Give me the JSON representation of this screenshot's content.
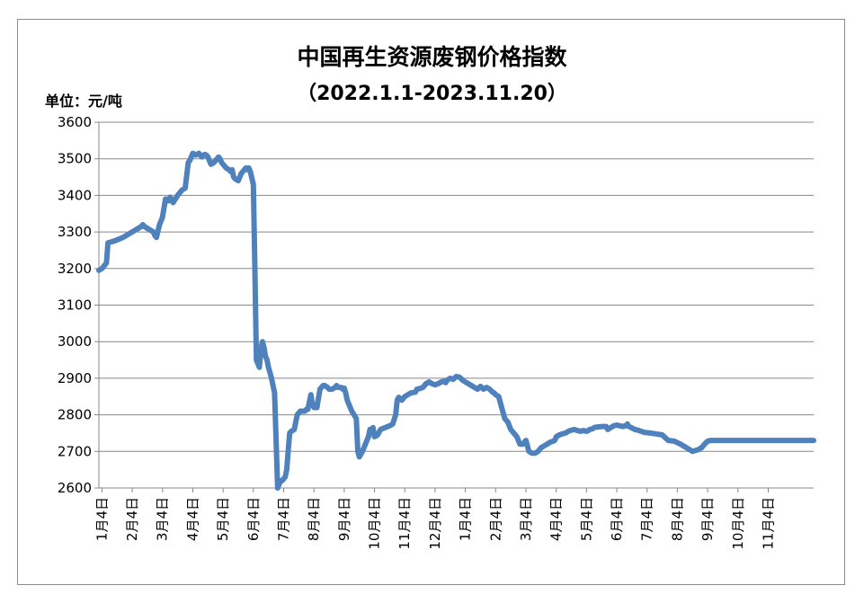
{
  "chart_data": {
    "type": "line",
    "title": "中国再生资源废钢价格指数",
    "subtitle": "（2022.1.1-2023.11.20）",
    "unit_label": "单位：元/吨",
    "ylim": [
      2600,
      3600
    ],
    "yticks": [
      2600,
      2700,
      2800,
      2900,
      3000,
      3100,
      3200,
      3300,
      3400,
      3500,
      3600
    ],
    "xlim": [
      0,
      23.6
    ],
    "categories": [
      "1月4日",
      "2月4日",
      "3月4日",
      "4月4日",
      "5月4日",
      "6月4日",
      "7月4日",
      "8月4日",
      "9月4日",
      "10月4日",
      "11月4日",
      "12月4日",
      "1月4日",
      "2月4日",
      "3月4日",
      "4月4日",
      "5月4日",
      "6月4日",
      "7月4日",
      "8月4日",
      "9月4日",
      "10月4日",
      "11月4日"
    ],
    "grid": true,
    "line_color": "#4f81bd",
    "series": [
      {
        "x": [
          0.0,
          0.1,
          0.2,
          0.25,
          0.3,
          0.5,
          0.8,
          1.1,
          1.4,
          1.45,
          1.5,
          1.8,
          1.85,
          1.9,
          2.0,
          2.05,
          2.1,
          2.2,
          2.3,
          2.35,
          2.45,
          2.6,
          2.75,
          2.85,
          2.95,
          3.0,
          3.1,
          3.2,
          3.3,
          3.4,
          3.45,
          3.5,
          3.55,
          3.6,
          3.7,
          3.8,
          3.9,
          3.95,
          4.0,
          4.05,
          4.1,
          4.15,
          4.2,
          4.3,
          4.35,
          4.4,
          4.45,
          4.5,
          4.6,
          4.7,
          4.85,
          4.9,
          4.95,
          5.0,
          5.1,
          5.15,
          5.2,
          5.3,
          5.35,
          5.4,
          5.45,
          5.5,
          5.55,
          5.6,
          5.7,
          5.8,
          5.9,
          6.0,
          6.05,
          6.1,
          6.15,
          6.2,
          6.25,
          6.3,
          6.35,
          6.45,
          6.55,
          6.6,
          6.65,
          6.7,
          6.8,
          6.85,
          6.9,
          7.0,
          7.05,
          7.1,
          7.2,
          7.3,
          7.35,
          7.4,
          7.45,
          7.5,
          7.55,
          7.6,
          7.7,
          7.8,
          7.85,
          7.9,
          8.0,
          8.05,
          8.1,
          8.15,
          8.2,
          8.3,
          8.35,
          8.5,
          8.55,
          8.6,
          8.7,
          8.75,
          8.8,
          8.9,
          8.95,
          9.0,
          9.05,
          9.1,
          9.2,
          9.3,
          9.45,
          9.6,
          9.7,
          9.8,
          9.85,
          9.9,
          10.0,
          10.05,
          10.1,
          10.3,
          10.45,
          10.5,
          10.6,
          10.7,
          10.75,
          10.8,
          10.9,
          11.0,
          11.1,
          11.2,
          11.3,
          11.4,
          11.45,
          11.5,
          11.6,
          11.7,
          11.8,
          11.9,
          11.95,
          12.0,
          12.1,
          12.2,
          12.3,
          12.4,
          12.5,
          12.6,
          12.7,
          12.8,
          12.9,
          13.0,
          13.05,
          13.1,
          13.2,
          13.3,
          13.4,
          13.5,
          13.55,
          13.6,
          13.7,
          13.8,
          13.85,
          13.9,
          14.0,
          14.1,
          14.2,
          14.3,
          14.4,
          14.5,
          14.6,
          14.7,
          14.8,
          14.9,
          15.0,
          15.05,
          15.1,
          15.2,
          15.3,
          15.4,
          15.5,
          15.6,
          15.7,
          15.8,
          15.9,
          16.0,
          16.1,
          16.15,
          16.2,
          16.3,
          16.35,
          16.4,
          16.5,
          16.6,
          16.7,
          16.75,
          16.8,
          16.9,
          17.0,
          17.1,
          17.2,
          17.3,
          17.4,
          17.45,
          17.5,
          17.7,
          17.8,
          17.9,
          18.0,
          18.2,
          18.4,
          18.6,
          18.8,
          19.0,
          19.2,
          19.4,
          19.6,
          19.8,
          19.85,
          19.9,
          20.0,
          20.1,
          20.2,
          20.3,
          20.4,
          20.5,
          20.55,
          20.6,
          20.7,
          20.8,
          20.9,
          21.0,
          21.05,
          21.1,
          21.2,
          21.3,
          21.4,
          21.5,
          21.6,
          21.7,
          21.8,
          21.9,
          22.0,
          22.1,
          22.2,
          22.3,
          22.35,
          22.4,
          22.5,
          22.6,
          22.7,
          22.8,
          22.9,
          23.0,
          23.3,
          23.6
        ],
        "values": [
          3195,
          3200,
          3210,
          3215,
          3270,
          3275,
          3285,
          3300,
          3315,
          3320,
          3315,
          3300,
          3290,
          3285,
          3320,
          3330,
          3340,
          3390,
          3385,
          3395,
          3380,
          3400,
          3415,
          3420,
          3490,
          3495,
          3515,
          3510,
          3515,
          3505,
          3510,
          3512,
          3510,
          3505,
          3485,
          3490,
          3500,
          3505,
          3500,
          3490,
          3485,
          3480,
          3475,
          3470,
          3465,
          3470,
          3450,
          3445,
          3440,
          3460,
          3475,
          3470,
          3475,
          3465,
          3430,
          3200,
          2950,
          2930,
          2980,
          3000,
          2985,
          2960,
          2950,
          2930,
          2900,
          2860,
          2600,
          2620,
          2620,
          2625,
          2630,
          2650,
          2700,
          2750,
          2755,
          2760,
          2800,
          2805,
          2810,
          2810,
          2810,
          2815,
          2815,
          2855,
          2830,
          2820,
          2820,
          2870,
          2875,
          2880,
          2880,
          2878,
          2875,
          2870,
          2870,
          2875,
          2880,
          2875,
          2875,
          2870,
          2873,
          2860,
          2840,
          2820,
          2810,
          2790,
          2700,
          2685,
          2700,
          2710,
          2720,
          2740,
          2760,
          2760,
          2765,
          2740,
          2745,
          2760,
          2765,
          2770,
          2775,
          2800,
          2840,
          2848,
          2840,
          2845,
          2850,
          2860,
          2862,
          2870,
          2872,
          2875,
          2880,
          2885,
          2890,
          2885,
          2882,
          2885,
          2890,
          2892,
          2888,
          2895,
          2900,
          2897,
          2905,
          2903,
          2900,
          2895,
          2890,
          2885,
          2880,
          2875,
          2870,
          2878,
          2870,
          2875,
          2870,
          2862,
          2860,
          2855,
          2850,
          2820,
          2790,
          2780,
          2770,
          2760,
          2750,
          2740,
          2730,
          2720,
          2720,
          2730,
          2700,
          2695,
          2695,
          2700,
          2710,
          2715,
          2720,
          2725,
          2728,
          2730,
          2740,
          2745,
          2748,
          2750,
          2755,
          2758,
          2760,
          2757,
          2755,
          2757,
          2755,
          2756,
          2760,
          2762,
          2765,
          2766,
          2767,
          2768,
          2768,
          2768,
          2760,
          2765,
          2770,
          2772,
          2770,
          2768,
          2770,
          2775,
          2768,
          2760,
          2758,
          2755,
          2752,
          2750,
          2748,
          2745,
          2730,
          2728,
          2720,
          2710,
          2700,
          2705,
          2708,
          2710,
          2720,
          2728,
          2730,
          2730,
          2730,
          2730,
          2730,
          2730,
          2730,
          2730,
          2730,
          2730,
          2730,
          2730,
          2730,
          2730,
          2730,
          2730,
          2730,
          2730,
          2730,
          2730,
          2730,
          2730,
          2730,
          2730,
          2730,
          2730,
          2730,
          2730,
          2730,
          2730,
          2730,
          2730,
          2730,
          2730
        ]
      }
    ]
  }
}
